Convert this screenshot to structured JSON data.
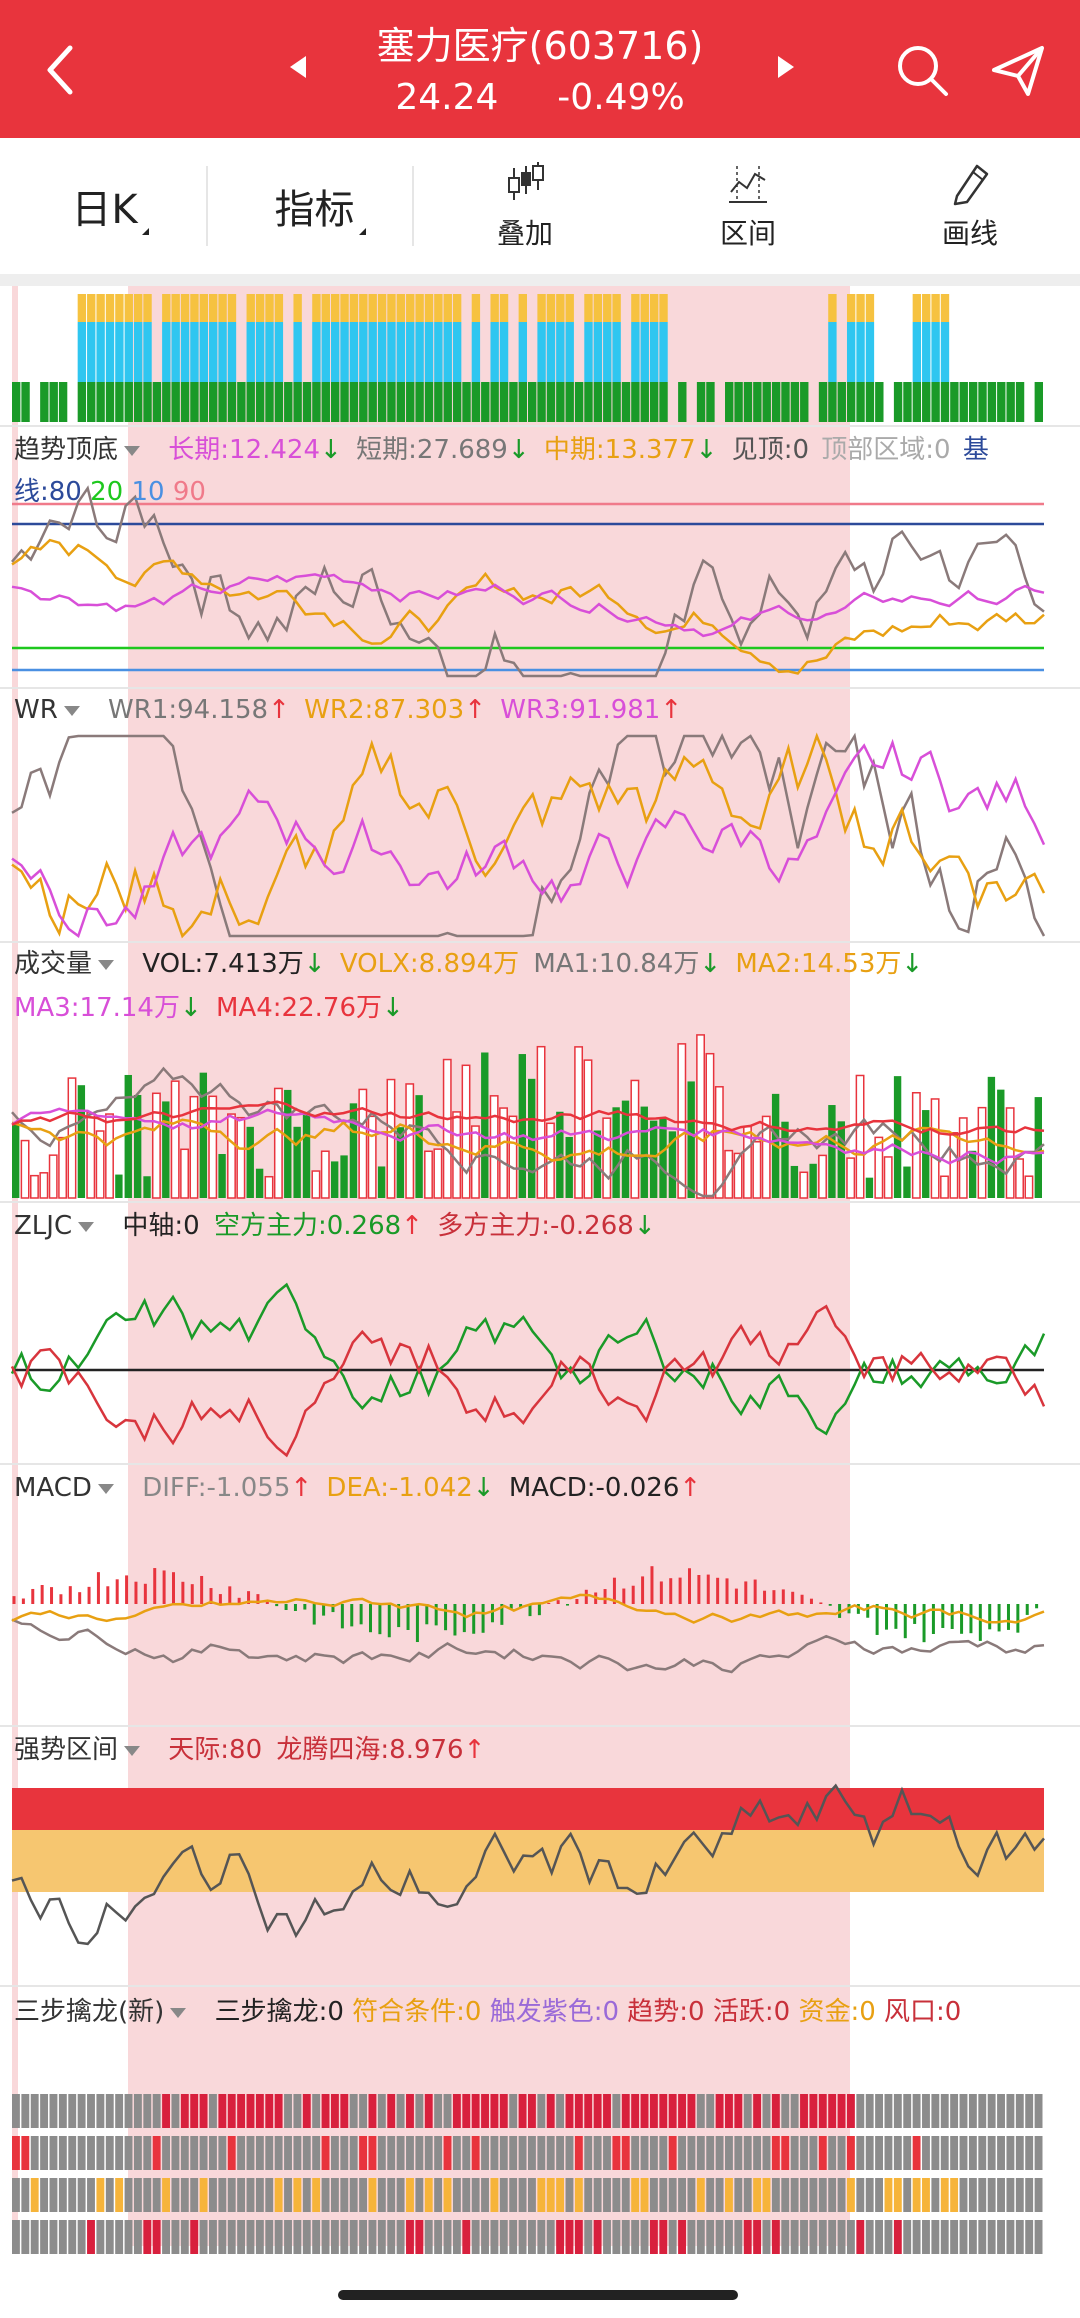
{
  "header": {
    "stock_name": "塞力医疗(603716)",
    "price": "24.24",
    "change": "-0.49%"
  },
  "toolbar": {
    "period_label": "日K",
    "indicator_label": "指标",
    "overlay_label": "叠加",
    "range_label": "区间",
    "draw_label": "画线"
  },
  "panels": {
    "trend": {
      "name": "趋势顶底",
      "long": "长期:12.424",
      "short": "短期:27.689",
      "mid": "中期:13.377",
      "see_top": "见顶:0",
      "top_zone": "顶部区域:0",
      "base_prefix": "基",
      "base_line": "线:80",
      "l20": "20",
      "l10": "10",
      "l90": "90"
    },
    "wr": {
      "name": "WR",
      "wr1": "WR1:94.158",
      "wr2": "WR2:87.303",
      "wr3": "WR3:91.981"
    },
    "volume": {
      "name": "成交量",
      "vol": "VOL:7.413万",
      "volx": "VOLX:8.894万",
      "ma1": "MA1:10.84万",
      "ma2": "MA2:14.53万",
      "ma3": "MA3:17.14万",
      "ma4": "MA4:22.76万"
    },
    "zljc": {
      "name": "ZLJC",
      "axis": "中轴:0",
      "short_force": "空方主力:0.268",
      "long_force": "多方主力:-0.268"
    },
    "macd": {
      "name": "MACD",
      "diff": "DIFF:-1.055",
      "dea": "DEA:-1.042",
      "macd": "MACD:-0.026"
    },
    "strong": {
      "name": "强势区间",
      "sky": "天际:80",
      "dragon": "龙腾四海:8.976"
    },
    "three": {
      "name": "三步擒龙(新)",
      "main": "三步擒龙:0",
      "cond": "符合条件:0",
      "trigger": "触发紫色:0",
      "trend": "趋势:0",
      "active": "活跃:0",
      "fund": "资金:0",
      "wind": "风口:0"
    }
  },
  "colors": {
    "header_bg": "#e8343d",
    "highlight": "#f9d8da",
    "up": "#e8343d",
    "down": "#1a9a28",
    "orange": "#e8a012",
    "magenta": "#d84fd8",
    "gray_line": "#8a7a7a"
  }
}
